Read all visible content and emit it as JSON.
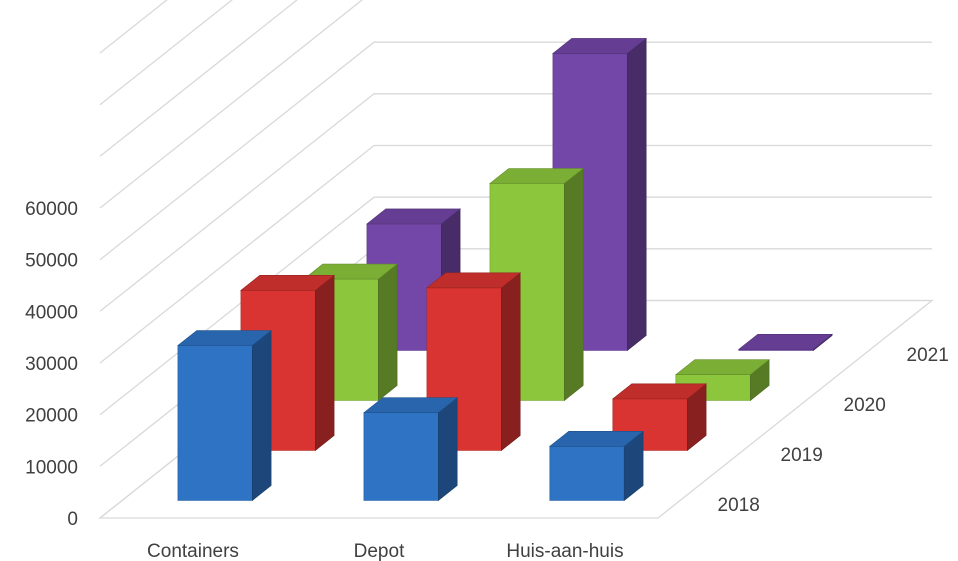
{
  "chart_data": {
    "type": "bar",
    "subtype": "3d-clustered-column",
    "categories": [
      "Containers",
      "Depot",
      "Huis-aan-huis"
    ],
    "series": [
      {
        "name": "2018",
        "values": [
          30000,
          17000,
          10500
        ],
        "color": "#2e73c4"
      },
      {
        "name": "2019",
        "values": [
          31000,
          31500,
          10000
        ],
        "color": "#d93431"
      },
      {
        "name": "2020",
        "values": [
          23500,
          42000,
          5000
        ],
        "color": "#8cc63c"
      },
      {
        "name": "2021",
        "values": [
          24500,
          57500,
          0
        ],
        "color": "#7347a8"
      }
    ],
    "yticks": [
      "0",
      "10000",
      "20000",
      "30000",
      "40000",
      "50000",
      "60000"
    ],
    "ylim": [
      0,
      60000
    ],
    "grid": true,
    "legend": "depth-axis"
  }
}
